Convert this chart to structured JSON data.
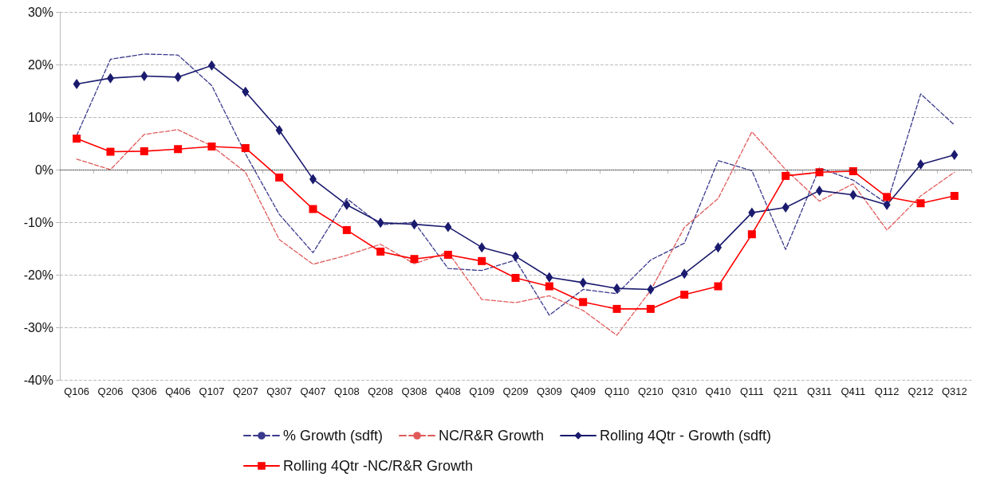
{
  "chart_data": {
    "type": "line",
    "categories": [
      "Q106",
      "Q206",
      "Q306",
      "Q406",
      "Q107",
      "Q207",
      "Q307",
      "Q407",
      "Q108",
      "Q208",
      "Q308",
      "Q408",
      "Q109",
      "Q209",
      "Q309",
      "Q409",
      "Q110",
      "Q210",
      "Q310",
      "Q410",
      "Q111",
      "Q211",
      "Q311",
      "Q411",
      "Q112",
      "Q212",
      "Q312"
    ],
    "series": [
      {
        "name": "% Growth (sdft)",
        "color": "#3a3a8c",
        "marker": "none",
        "line_style": "dashed",
        "values": [
          6.5,
          21.0,
          22.0,
          21.8,
          16.0,
          3.0,
          -8.5,
          -15.8,
          -5.5,
          -10.5,
          -10.0,
          -18.8,
          -19.2,
          -17.2,
          -27.7,
          -22.8,
          -23.6,
          -17.2,
          -14.0,
          1.7,
          -0.2,
          -15.2,
          0.3,
          -2.0,
          -6.5,
          14.4,
          8.5
        ]
      },
      {
        "name": "NC/R&R Growth",
        "color": "#e05a5a",
        "marker": "none",
        "line_style": "dashed",
        "values": [
          2.0,
          0.0,
          6.7,
          7.6,
          4.5,
          -0.5,
          -13.3,
          -18.0,
          -16.3,
          -14.2,
          -17.9,
          -15.7,
          -24.7,
          -25.3,
          -24.0,
          -26.8,
          -31.5,
          -23.0,
          -11.0,
          -5.5,
          7.2,
          0.0,
          -6.0,
          -2.7,
          -11.5,
          -5.0,
          -0.5
        ]
      },
      {
        "name": "Rolling 4Qtr - Growth (sdft)",
        "color": "#1a1a6e",
        "marker": "diamond",
        "line_style": "solid",
        "values": [
          16.3,
          17.4,
          17.8,
          17.6,
          19.8,
          14.8,
          7.5,
          -1.8,
          -6.7,
          -10.1,
          -10.4,
          -10.9,
          -14.8,
          -16.5,
          -20.5,
          -21.5,
          -22.6,
          -22.8,
          -19.8,
          -14.8,
          -8.2,
          -7.2,
          -4.0,
          -4.8,
          -6.7,
          1.0,
          2.8
        ]
      },
      {
        "name": "Rolling 4Qtr -NC/R&R Growth",
        "color": "#ff0000",
        "marker": "square",
        "line_style": "solid",
        "values": [
          5.9,
          3.4,
          3.5,
          3.9,
          4.4,
          4.1,
          -1.5,
          -7.5,
          -11.5,
          -15.6,
          -17.0,
          -16.2,
          -17.4,
          -20.6,
          -22.2,
          -25.2,
          -26.5,
          -26.5,
          -23.8,
          -22.2,
          -12.3,
          -1.2,
          -0.5,
          -0.3,
          -5.2,
          -6.4,
          -5.0
        ]
      }
    ],
    "ylim": [
      -40,
      30
    ],
    "yticks": [
      {
        "value": -40,
        "label": "-40%"
      },
      {
        "value": -30,
        "label": "-30%"
      },
      {
        "value": -20,
        "label": "-20%"
      },
      {
        "value": -10,
        "label": "-10%"
      },
      {
        "value": 0,
        "label": "0%"
      },
      {
        "value": 10,
        "label": "10%"
      },
      {
        "value": 20,
        "label": "20%"
      },
      {
        "value": 30,
        "label": "30%"
      }
    ],
    "ref_lines": [
      {
        "axis": "y",
        "value": 0,
        "color": "#222222",
        "line_style": "dotted"
      }
    ],
    "grid": "y",
    "legend": "bottom"
  }
}
